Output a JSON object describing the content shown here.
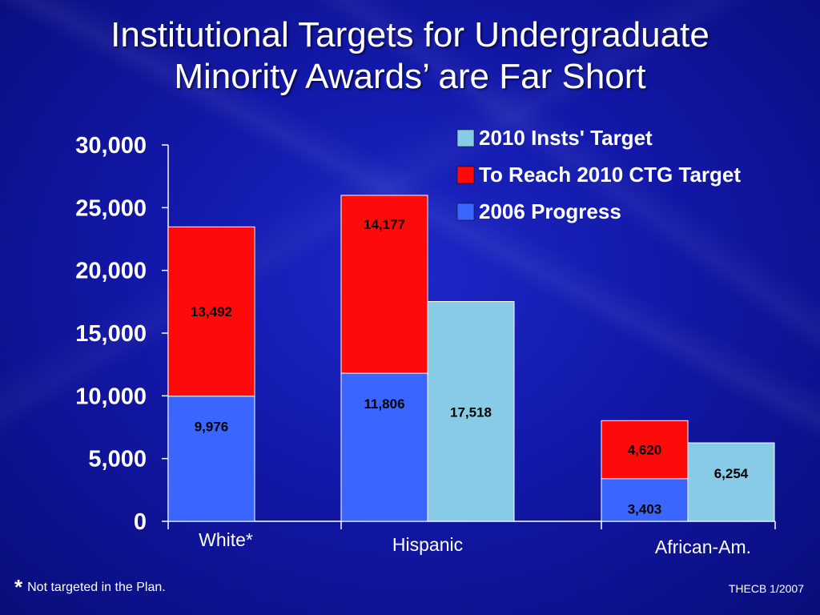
{
  "slide": {
    "title_line1": "Institutional Targets for Undergraduate",
    "title_line2": "Minority Awards’ are Far Short",
    "footnote_star": "*",
    "footnote_text": "Not targeted in the Plan.",
    "credit": "THECB 1/2007"
  },
  "colors": {
    "progress": "#3a66ff",
    "to_reach": "#ff0a0a",
    "insts_target": "#87cbe7",
    "axis": "#ffffff"
  },
  "chart_data": {
    "type": "bar",
    "stacked_and_grouped": true,
    "categories": [
      "White*",
      "Hispanic",
      "African-Am."
    ],
    "ylim": [
      0,
      30000
    ],
    "yticks": [
      0,
      5000,
      10000,
      15000,
      20000,
      25000,
      30000
    ],
    "ytick_labels": [
      "0",
      "5,000",
      "10,000",
      "15,000",
      "20,000",
      "25,000",
      "30,000"
    ],
    "legend_position": "top-right",
    "legend": [
      "2010 Insts' Target",
      "To Reach 2010 CTG Target",
      "2006 Progress"
    ],
    "series": [
      {
        "name": "2006 Progress",
        "values": [
          9976,
          11806,
          3403
        ],
        "labels": [
          "9,976",
          "11,806",
          "3,403"
        ],
        "stack": "ctg"
      },
      {
        "name": "To Reach 2010 CTG Target",
        "values": [
          13492,
          14177,
          4620
        ],
        "labels": [
          "13,492",
          "14,177",
          "4,620"
        ],
        "stack": "ctg"
      },
      {
        "name": "2010 Insts' Target",
        "values": [
          null,
          17518,
          6254
        ],
        "labels": [
          "",
          "17,518",
          "6,254"
        ],
        "stack": "insts"
      }
    ]
  }
}
